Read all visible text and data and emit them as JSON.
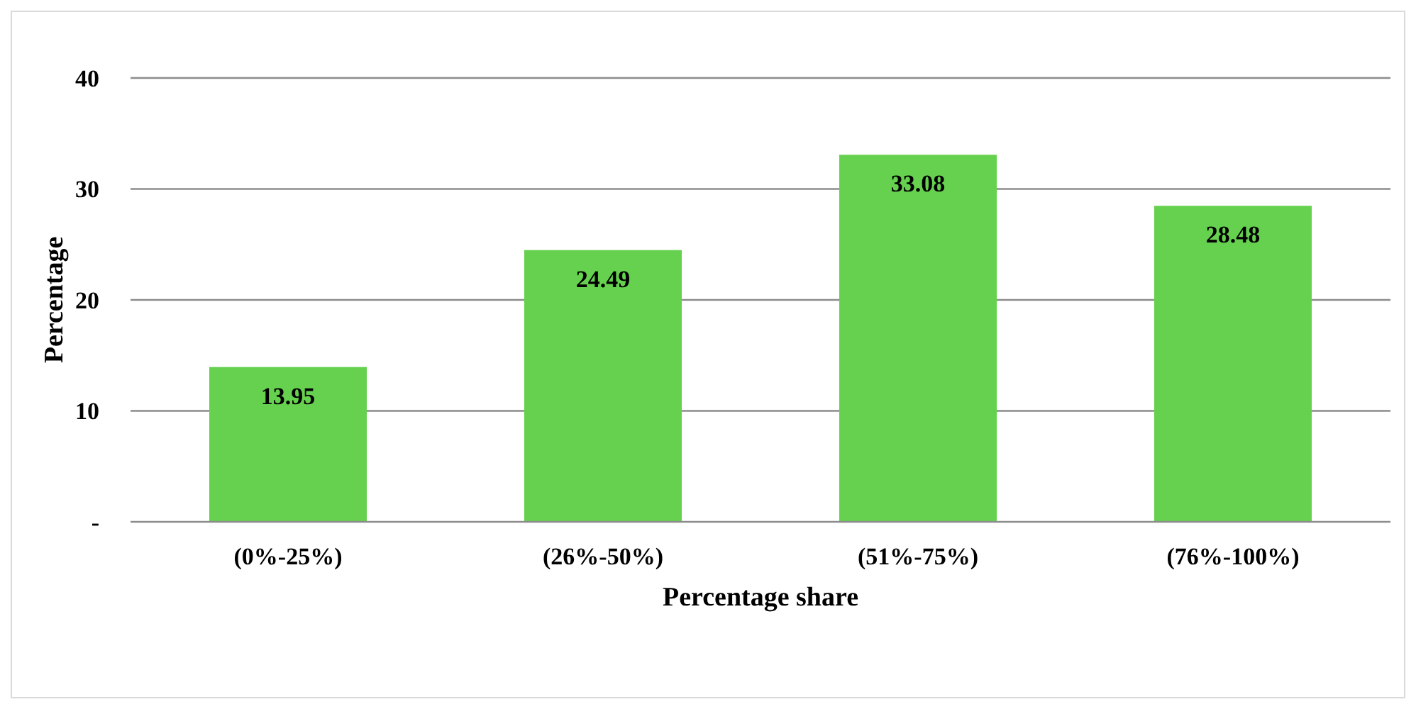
{
  "chart_data": {
    "type": "bar",
    "xlabel": "Percentage share",
    "ylabel": "Percentage",
    "categories": [
      "(0%-25%)",
      "(26%-50%)",
      "(51%-75%)",
      "(76%-100%)"
    ],
    "values": [
      13.95,
      24.49,
      33.08,
      28.48
    ],
    "color": "#66d14f",
    "ylim": [
      0,
      40
    ],
    "yticks": [
      {
        "value": 0,
        "label": "-"
      },
      10,
      20,
      30,
      40
    ],
    "grid": "y",
    "data_labels": true
  }
}
